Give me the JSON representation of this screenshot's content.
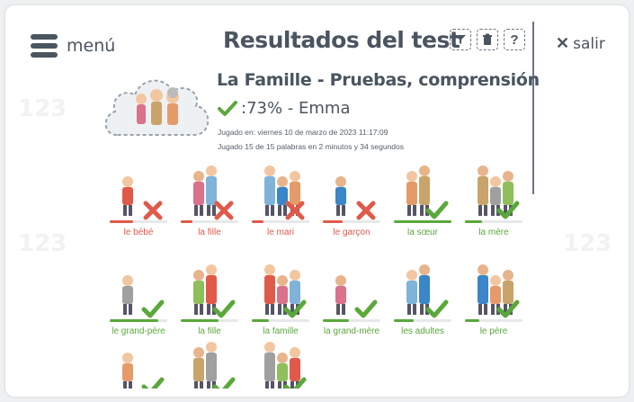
{
  "header": {
    "menu_label": "menú",
    "title": "Resultados del test",
    "close_label": "salir",
    "tools": {
      "help_label": "?"
    }
  },
  "result": {
    "subtitle": "La Famille - Pruebas, comprensión",
    "score": ":73% - Emma",
    "played_on": "Jugado en: viernes 10 de marzo de 2023 11:17:09",
    "played_summary": "Jugado 15 de 15 palabras en 2 minutos y 34 segundos"
  },
  "colors": {
    "correct": "#5aa83a",
    "wrong": "#e05a4a",
    "text": "#4a5560"
  },
  "words": [
    {
      "label": "le bébé",
      "correct": false,
      "progress": 0.4
    },
    {
      "label": "la fille",
      "correct": false,
      "progress": 0.2
    },
    {
      "label": "le mari",
      "correct": false,
      "progress": 0.2
    },
    {
      "label": "le garçon",
      "correct": false,
      "progress": 0.35
    },
    {
      "label": "la sœur",
      "correct": true,
      "progress": 1.0
    },
    {
      "label": "la mère",
      "correct": true,
      "progress": 0.3
    },
    {
      "label": "le grand-père",
      "correct": true,
      "progress": 0.85
    },
    {
      "label": "la fille",
      "correct": true,
      "progress": 0.65
    },
    {
      "label": "la famille",
      "correct": true,
      "progress": 0.3
    },
    {
      "label": "la grand-mère",
      "correct": true,
      "progress": 0.45
    },
    {
      "label": "les adultes",
      "correct": true,
      "progress": 0.35
    },
    {
      "label": "le père",
      "correct": true,
      "progress": 0.25
    },
    {
      "label": "",
      "correct": true,
      "progress": 0
    },
    {
      "label": "",
      "correct": true,
      "progress": 0
    },
    {
      "label": "",
      "correct": true,
      "progress": 0
    }
  ]
}
